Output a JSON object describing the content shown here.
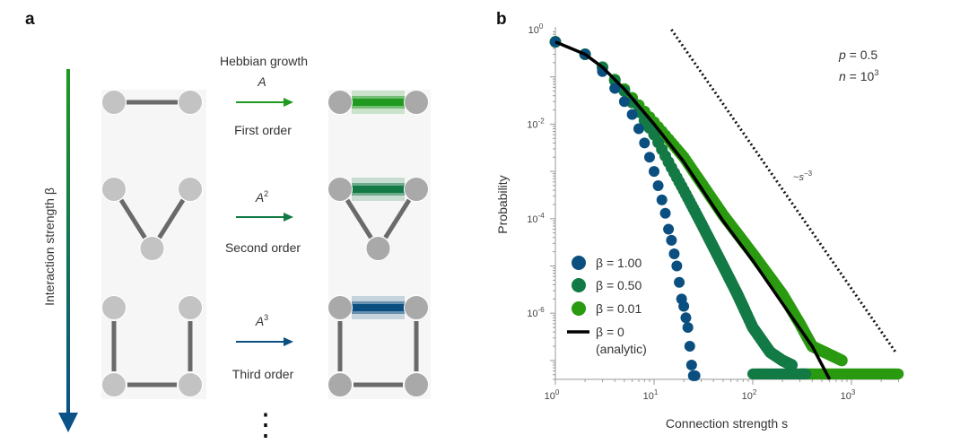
{
  "panel_a": {
    "label": "a",
    "axis_label": "Interaction strength β",
    "arrow_colors": [
      "#1f9a1f",
      "#0b5288"
    ],
    "title": "Hebbian growth",
    "rows": [
      {
        "operator": "A",
        "power": "",
        "order": "First order",
        "color": "#1f9a1f"
      },
      {
        "operator": "A",
        "power": "2",
        "order": "Second order",
        "color": "#137a45"
      },
      {
        "operator": "A",
        "power": "3",
        "order": "Third order",
        "color": "#0b4f80"
      }
    ],
    "ellipsis": "⋮"
  },
  "chart_data": {
    "type": "scatter",
    "panel_label": "b",
    "xlabel": "Connection strength s",
    "ylabel": "Probability",
    "xscale": "log",
    "yscale": "log",
    "xlim": [
      1,
      3000
    ],
    "ylim": [
      4e-08,
      1
    ],
    "x_ticks": [
      {
        "base": "10",
        "exp": "0"
      },
      {
        "base": "10",
        "exp": "1"
      },
      {
        "base": "10",
        "exp": "2"
      },
      {
        "base": "10",
        "exp": "3"
      }
    ],
    "y_ticks": [
      {
        "base": "10",
        "exp": "0"
      },
      {
        "base": "10",
        "exp": "-2"
      },
      {
        "base": "10",
        "exp": "-4"
      },
      {
        "base": "10",
        "exp": "-6"
      }
    ],
    "grid": false,
    "legend_position": "bottom-left",
    "annotations": {
      "p": {
        "var": "p",
        "text": " = 0.5"
      },
      "n": {
        "var": "n",
        "text": " = 10",
        "exp": "3"
      },
      "scaling": {
        "prefix": "~",
        "var": "s",
        "exp": "−3"
      }
    },
    "reference_line": {
      "label": "~s^-3",
      "points": [
        [
          15,
          1
        ],
        [
          2800,
          1.5e-07
        ]
      ],
      "style": "dotted"
    },
    "series": [
      {
        "name": "β = 1.00",
        "color": "#0b4f80",
        "kind": "points",
        "points": [
          [
            1,
            0.55
          ],
          [
            2,
            0.3
          ],
          [
            3,
            0.13
          ],
          [
            4,
            0.057
          ],
          [
            5,
            0.03
          ],
          [
            6,
            0.016
          ],
          [
            7,
            0.008
          ],
          [
            8,
            0.004
          ],
          [
            9,
            0.002
          ],
          [
            10,
            0.001
          ],
          [
            11,
            0.0005
          ],
          [
            12,
            0.00025
          ],
          [
            13,
            0.00013
          ],
          [
            14,
            6e-05
          ],
          [
            15,
            3.5e-05
          ],
          [
            16,
            1.8e-05
          ],
          [
            17,
            1e-05
          ],
          [
            18,
            4.5e-06
          ],
          [
            19,
            2e-06
          ],
          [
            20,
            1.4e-06
          ],
          [
            21,
            8e-07
          ],
          [
            22,
            5e-07
          ],
          [
            23,
            2e-07
          ],
          [
            24,
            8e-08
          ],
          [
            25,
            4e-08
          ],
          [
            26,
            4e-08
          ]
        ]
      },
      {
        "name": "β = 0.50",
        "color": "#137a45",
        "kind": "points",
        "points": [
          [
            1,
            0.55
          ],
          [
            2,
            0.3
          ],
          [
            3,
            0.16
          ],
          [
            5,
            0.05
          ],
          [
            8,
            0.012
          ],
          [
            10,
            0.006
          ],
          [
            15,
            0.0012
          ],
          [
            20,
            0.0004
          ],
          [
            30,
            8e-05
          ],
          [
            50,
            1e-05
          ],
          [
            70,
            2.5e-06
          ],
          [
            100,
            5e-07
          ],
          [
            150,
            1.5e-07
          ],
          [
            200,
            1e-07
          ],
          [
            250,
            8e-08
          ]
        ],
        "floor": {
          "from": 100,
          "to": 350,
          "p": 4e-08
        }
      },
      {
        "name": "β = 0.01",
        "color": "#2a9a10",
        "kind": "points",
        "points": [
          [
            1,
            0.55
          ],
          [
            2,
            0.3
          ],
          [
            3,
            0.16
          ],
          [
            5,
            0.055
          ],
          [
            10,
            0.011
          ],
          [
            20,
            0.002
          ],
          [
            50,
            0.00012
          ],
          [
            100,
            1.8e-05
          ],
          [
            200,
            2.5e-06
          ],
          [
            300,
            6e-07
          ],
          [
            400,
            2e-07
          ],
          [
            800,
            1e-07
          ]
        ],
        "floor": {
          "from": 300,
          "to": 3000,
          "p": 4.5e-08
        }
      },
      {
        "name": "β = 0",
        "name_line2": "(analytic)",
        "color": "#000000",
        "kind": "line",
        "points": [
          [
            1,
            0.55
          ],
          [
            2,
            0.3
          ],
          [
            3,
            0.16
          ],
          [
            5,
            0.055
          ],
          [
            10,
            0.01
          ],
          [
            20,
            0.0016
          ],
          [
            50,
            9e-05
          ],
          [
            100,
            1.3e-05
          ],
          [
            200,
            1.6e-06
          ],
          [
            400,
            2e-07
          ],
          [
            600,
            4e-08
          ]
        ]
      }
    ]
  }
}
